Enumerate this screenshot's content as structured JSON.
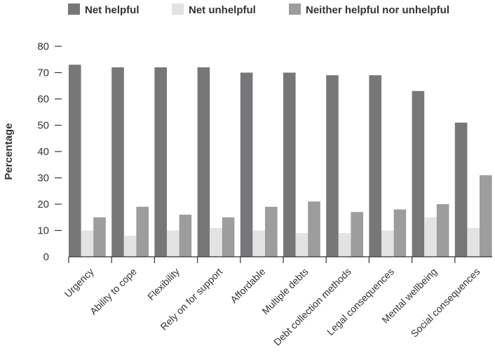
{
  "chart_data": {
    "type": "bar",
    "title": "",
    "xlabel": "",
    "ylabel": "Percentage",
    "ylim": [
      0,
      80
    ],
    "yticks": [
      0,
      10,
      20,
      30,
      40,
      50,
      60,
      70,
      80
    ],
    "grid": false,
    "legend_position": "top",
    "categories": [
      "Urgency",
      "Ability to cope",
      "Flexibility",
      "Rely on for support",
      "Affordable",
      "Multiple debts",
      "Debt collection methods",
      "Legal consequences",
      "Mental wellbeing",
      "Social consequences"
    ],
    "series": [
      {
        "name": "Net helpful",
        "color": "#77777a",
        "values": [
          73,
          72,
          72,
          72,
          70,
          70,
          69,
          69,
          63,
          51
        ]
      },
      {
        "name": "Net unhelpful",
        "color": "#e3e3e3",
        "values": [
          10,
          8,
          10,
          11,
          10,
          9,
          9,
          10,
          15,
          11
        ]
      },
      {
        "name": "Neither helpful nor unhelpful",
        "color": "#9d9d9f",
        "values": [
          15,
          19,
          16,
          15,
          19,
          21,
          17,
          18,
          20,
          31
        ]
      }
    ]
  }
}
